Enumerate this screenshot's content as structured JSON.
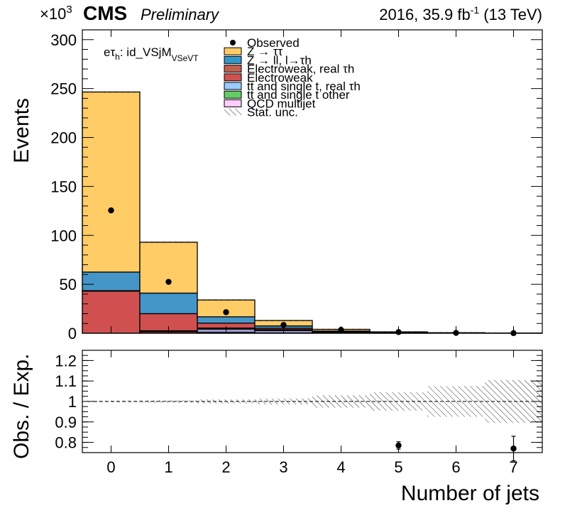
{
  "header": {
    "exponent_label": "×10",
    "exponent_power": "3",
    "experiment": "CMS",
    "status": "Preliminary",
    "lumi_prefix": "2016, 35.9 fb",
    "lumi_power": "-1",
    "lumi_suffix": " (13 TeV)"
  },
  "channel": {
    "prefix": "eτ",
    "sub": "h",
    "rest": ": id_VSjM",
    "sub2": "VSeVT"
  },
  "legend": {
    "observed": "Observed",
    "ztt": "Z → ττ",
    "zll": "Z → ll, l→τh",
    "ew_real": "Electroweak, real τh",
    "ew": "Electroweak",
    "tt_real": "tt and single t, real τh",
    "tt_other": "tt and single t other",
    "qcd": "QCD multijet",
    "stat": "Stat. unc."
  },
  "colors": {
    "ztt": "#ffcc66",
    "zll": "#4496c8",
    "ew_real": "#de5a6a",
    "ew": "#d05050",
    "tt_real": "#9999cc",
    "tt_other": "#80d080",
    "qcd": "#ffccff",
    "zll_legend": "#3399cc",
    "ew_real_legend": "#c06050",
    "tt_real_legend": "#99ccff",
    "tt_other_legend": "#66cc66"
  },
  "chart_data": {
    "type": "bar",
    "categories": [
      "0",
      "1",
      "2",
      "3",
      "4",
      "5",
      "6",
      "7"
    ],
    "xlabel": "Number of jets",
    "ylabel": "Events",
    "ylim": [
      0,
      310
    ],
    "yticks": [
      "0",
      "50",
      "100",
      "150",
      "200",
      "250",
      "300"
    ],
    "series": [
      {
        "key": "ew",
        "name": "Electroweak",
        "values": [
          43.0,
          1.5,
          0.5,
          0.2,
          0.1,
          0.05,
          0.02,
          0.01
        ]
      },
      {
        "key": "ew_real",
        "name": "Electroweak, real τh",
        "values": [
          0.3,
          0.3,
          0.3,
          0.1,
          0.05,
          0.02,
          0.01,
          0.0
        ]
      },
      {
        "key": "tt_real",
        "name": "tt and single t, real τh",
        "values": [
          0.2,
          0.5,
          3.5,
          2.5,
          1.0,
          0.5,
          0.2,
          0.1
        ]
      },
      {
        "key": "tt_other",
        "name": "tt and single t other",
        "values": [
          0.0,
          0.2,
          1.0,
          0.8,
          0.3,
          0.1,
          0.05,
          0.02
        ]
      },
      {
        "key": "ew_cont",
        "name": "Electroweak",
        "values": [
          0.0,
          17.5,
          5.0,
          1.5,
          0.3,
          0.1,
          0.05,
          0.01
        ]
      },
      {
        "key": "zll",
        "name": "Z → ll, l→τh",
        "values": [
          19.0,
          21.0,
          6.5,
          2.4,
          0.5,
          0.15,
          0.05,
          0.02
        ]
      },
      {
        "key": "ztt",
        "name": "Z → ττ",
        "values": [
          184.0,
          52.0,
          17.2,
          5.5,
          1.75,
          0.48,
          0.13,
          0.04
        ]
      }
    ],
    "observed": [
      125.5,
      52.5,
      21.5,
      8.5,
      3.5,
      1.2,
      0.3,
      0.1
    ],
    "ratio": {
      "ylabel": "Obs. / Exp.",
      "ylim": [
        0.75,
        1.25
      ],
      "yticks": [
        "0.8",
        "0.9",
        "1",
        "1.1",
        "1.2"
      ],
      "values": [
        null,
        null,
        null,
        null,
        null,
        0.785,
        null,
        0.77
      ],
      "errors": [
        null,
        null,
        null,
        null,
        null,
        0.018,
        null,
        0.06
      ],
      "stat_unc": [
        0.004,
        0.006,
        0.01,
        0.015,
        0.03,
        0.045,
        0.075,
        0.105
      ]
    }
  }
}
